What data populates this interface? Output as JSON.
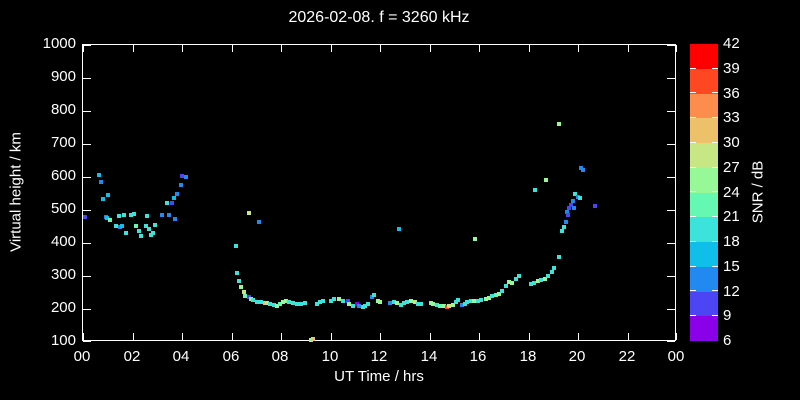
{
  "chart_data": {
    "type": "scatter",
    "title": "2026-02-08. f = 3260 kHz",
    "xlabel": "UT Time / hrs",
    "ylabel": "Virtual height / km",
    "xlim": [
      0,
      24
    ],
    "ylim": [
      100,
      1000
    ],
    "x_tick_hours": [
      0,
      2,
      4,
      6,
      8,
      10,
      12,
      14,
      16,
      18,
      20,
      22,
      24
    ],
    "x_tick_labels": [
      "00",
      "02",
      "04",
      "06",
      "08",
      "10",
      "12",
      "14",
      "16",
      "18",
      "20",
      "22",
      "00"
    ],
    "y_ticks": [
      100,
      200,
      300,
      400,
      500,
      600,
      700,
      800,
      900,
      1000
    ],
    "grid": false,
    "background_color": "#000000",
    "foreground_color": "#ffffff",
    "colorbar": {
      "label": "SNR / dB",
      "min": 6,
      "max": 42,
      "step": 3,
      "tick_labels": [
        6,
        9,
        12,
        15,
        18,
        21,
        24,
        27,
        30,
        33,
        36,
        39,
        42
      ],
      "colors_low_to_high": [
        "#8a00e8",
        "#4b45f3",
        "#2289f0",
        "#0fbfe9",
        "#3be3db",
        "#64f8b2",
        "#97f897",
        "#c6e784",
        "#edc06a",
        "#fc8d4c",
        "#ff4721",
        "#ff0000"
      ]
    },
    "points_format": [
      "ut_hrs",
      "virtual_height_km",
      "snr_db"
    ],
    "points": [
      [
        0.08,
        479,
        10
      ],
      [
        0.63,
        606,
        17
      ],
      [
        0.71,
        585,
        13
      ],
      [
        0.81,
        533,
        16
      ],
      [
        0.93,
        479,
        13
      ],
      [
        0.95,
        476,
        16
      ],
      [
        1.03,
        545,
        16
      ],
      [
        1.08,
        469,
        22
      ],
      [
        1.32,
        451,
        19
      ],
      [
        1.44,
        482,
        19
      ],
      [
        1.51,
        447,
        13
      ],
      [
        1.56,
        451,
        16
      ],
      [
        1.64,
        485,
        19
      ],
      [
        1.72,
        430,
        19
      ],
      [
        1.93,
        484,
        19
      ],
      [
        2.08,
        489,
        19
      ],
      [
        2.16,
        452,
        22
      ],
      [
        2.26,
        437,
        19
      ],
      [
        2.33,
        421,
        19
      ],
      [
        2.54,
        451,
        19
      ],
      [
        2.57,
        482,
        19
      ],
      [
        2.66,
        442,
        19
      ],
      [
        2.73,
        424,
        19
      ],
      [
        2.83,
        430,
        19
      ],
      [
        2.9,
        455,
        19
      ],
      [
        3.18,
        485,
        13
      ],
      [
        3.38,
        521,
        19
      ],
      [
        3.46,
        485,
        13
      ],
      [
        3.58,
        521,
        10
      ],
      [
        3.66,
        536,
        16
      ],
      [
        3.7,
        473,
        13
      ],
      [
        3.8,
        548,
        13
      ],
      [
        3.95,
        576,
        13
      ],
      [
        4.0,
        603,
        10
      ],
      [
        4.16,
        600,
        13
      ],
      [
        6.2,
        390,
        19
      ],
      [
        6.24,
        309,
        19
      ],
      [
        6.3,
        285,
        19
      ],
      [
        6.4,
        267,
        26
      ],
      [
        6.5,
        252,
        28
      ],
      [
        6.56,
        240,
        22
      ],
      [
        6.7,
        491,
        28
      ],
      [
        6.7,
        236,
        10
      ],
      [
        6.77,
        230,
        24
      ],
      [
        6.85,
        227,
        19
      ],
      [
        7.05,
        221,
        19
      ],
      [
        7.1,
        464,
        13
      ],
      [
        7.2,
        221,
        19
      ],
      [
        7.37,
        218,
        31
      ],
      [
        7.45,
        218,
        28
      ],
      [
        7.57,
        215,
        19
      ],
      [
        7.7,
        212,
        19
      ],
      [
        7.85,
        209,
        24
      ],
      [
        7.97,
        215,
        22
      ],
      [
        8.1,
        221,
        25
      ],
      [
        8.2,
        224,
        25
      ],
      [
        8.33,
        221,
        19
      ],
      [
        8.5,
        218,
        19
      ],
      [
        8.65,
        215,
        19
      ],
      [
        8.8,
        215,
        19
      ],
      [
        8.97,
        218,
        19
      ],
      [
        9.2,
        105,
        25
      ],
      [
        9.3,
        108,
        31
      ],
      [
        9.44,
        215,
        19
      ],
      [
        9.57,
        221,
        19
      ],
      [
        9.68,
        224,
        19
      ],
      [
        10.02,
        224,
        19
      ],
      [
        10.15,
        230,
        19
      ],
      [
        10.36,
        230,
        25
      ],
      [
        10.5,
        224,
        19
      ],
      [
        10.7,
        224,
        10
      ],
      [
        10.75,
        215,
        25
      ],
      [
        10.9,
        209,
        19
      ],
      [
        11.07,
        215,
        8
      ],
      [
        11.17,
        209,
        13
      ],
      [
        11.3,
        206,
        19
      ],
      [
        11.4,
        209,
        19
      ],
      [
        11.5,
        215,
        19
      ],
      [
        11.68,
        236,
        13
      ],
      [
        11.74,
        242,
        19
      ],
      [
        11.9,
        224,
        25
      ],
      [
        12.0,
        221,
        25
      ],
      [
        12.4,
        218,
        13
      ],
      [
        12.56,
        221,
        19
      ],
      [
        12.7,
        218,
        25
      ],
      [
        12.77,
        443,
        17
      ],
      [
        12.83,
        212,
        19
      ],
      [
        12.97,
        218,
        19
      ],
      [
        13.1,
        221,
        19
      ],
      [
        13.27,
        224,
        25
      ],
      [
        13.4,
        221,
        28
      ],
      [
        13.54,
        215,
        19
      ],
      [
        13.67,
        215,
        19
      ],
      [
        14.05,
        218,
        25
      ],
      [
        14.15,
        215,
        24
      ],
      [
        14.3,
        212,
        19
      ],
      [
        14.43,
        209,
        21
      ],
      [
        14.57,
        209,
        24
      ],
      [
        14.7,
        206,
        37
      ],
      [
        14.8,
        209,
        28
      ],
      [
        14.95,
        212,
        25
      ],
      [
        15.08,
        221,
        19
      ],
      [
        15.16,
        227,
        19
      ],
      [
        15.32,
        212,
        13
      ],
      [
        15.44,
        215,
        19
      ],
      [
        15.52,
        221,
        19
      ],
      [
        15.66,
        224,
        19
      ],
      [
        15.81,
        224,
        24
      ],
      [
        15.85,
        412,
        25
      ],
      [
        15.94,
        224,
        19
      ],
      [
        16.08,
        227,
        19
      ],
      [
        16.28,
        230,
        24
      ],
      [
        16.4,
        233,
        25
      ],
      [
        16.54,
        239,
        19
      ],
      [
        16.67,
        242,
        22
      ],
      [
        16.8,
        245,
        25
      ],
      [
        16.94,
        254,
        19
      ],
      [
        17.08,
        269,
        19
      ],
      [
        17.2,
        281,
        24
      ],
      [
        17.35,
        278,
        25
      ],
      [
        17.48,
        290,
        19
      ],
      [
        17.6,
        299,
        19
      ],
      [
        18.1,
        276,
        19
      ],
      [
        18.23,
        279,
        19
      ],
      [
        18.26,
        561,
        19
      ],
      [
        18.4,
        285,
        24
      ],
      [
        18.5,
        288,
        19
      ],
      [
        18.68,
        291,
        24
      ],
      [
        18.7,
        591,
        24
      ],
      [
        18.8,
        300,
        19
      ],
      [
        18.95,
        312,
        19
      ],
      [
        19.04,
        324,
        19
      ],
      [
        19.23,
        761,
        24
      ],
      [
        19.24,
        357,
        19
      ],
      [
        19.36,
        436,
        19
      ],
      [
        19.44,
        448,
        19
      ],
      [
        19.5,
        464,
        13
      ],
      [
        19.55,
        494,
        13
      ],
      [
        19.6,
        485,
        10
      ],
      [
        19.62,
        506,
        10
      ],
      [
        19.72,
        515,
        10
      ],
      [
        19.8,
        527,
        13
      ],
      [
        19.85,
        506,
        13
      ],
      [
        19.88,
        548,
        19
      ],
      [
        20.0,
        539,
        13
      ],
      [
        20.08,
        536,
        19
      ],
      [
        20.12,
        627,
        13
      ],
      [
        20.2,
        621,
        13
      ],
      [
        20.7,
        512,
        10
      ]
    ]
  }
}
